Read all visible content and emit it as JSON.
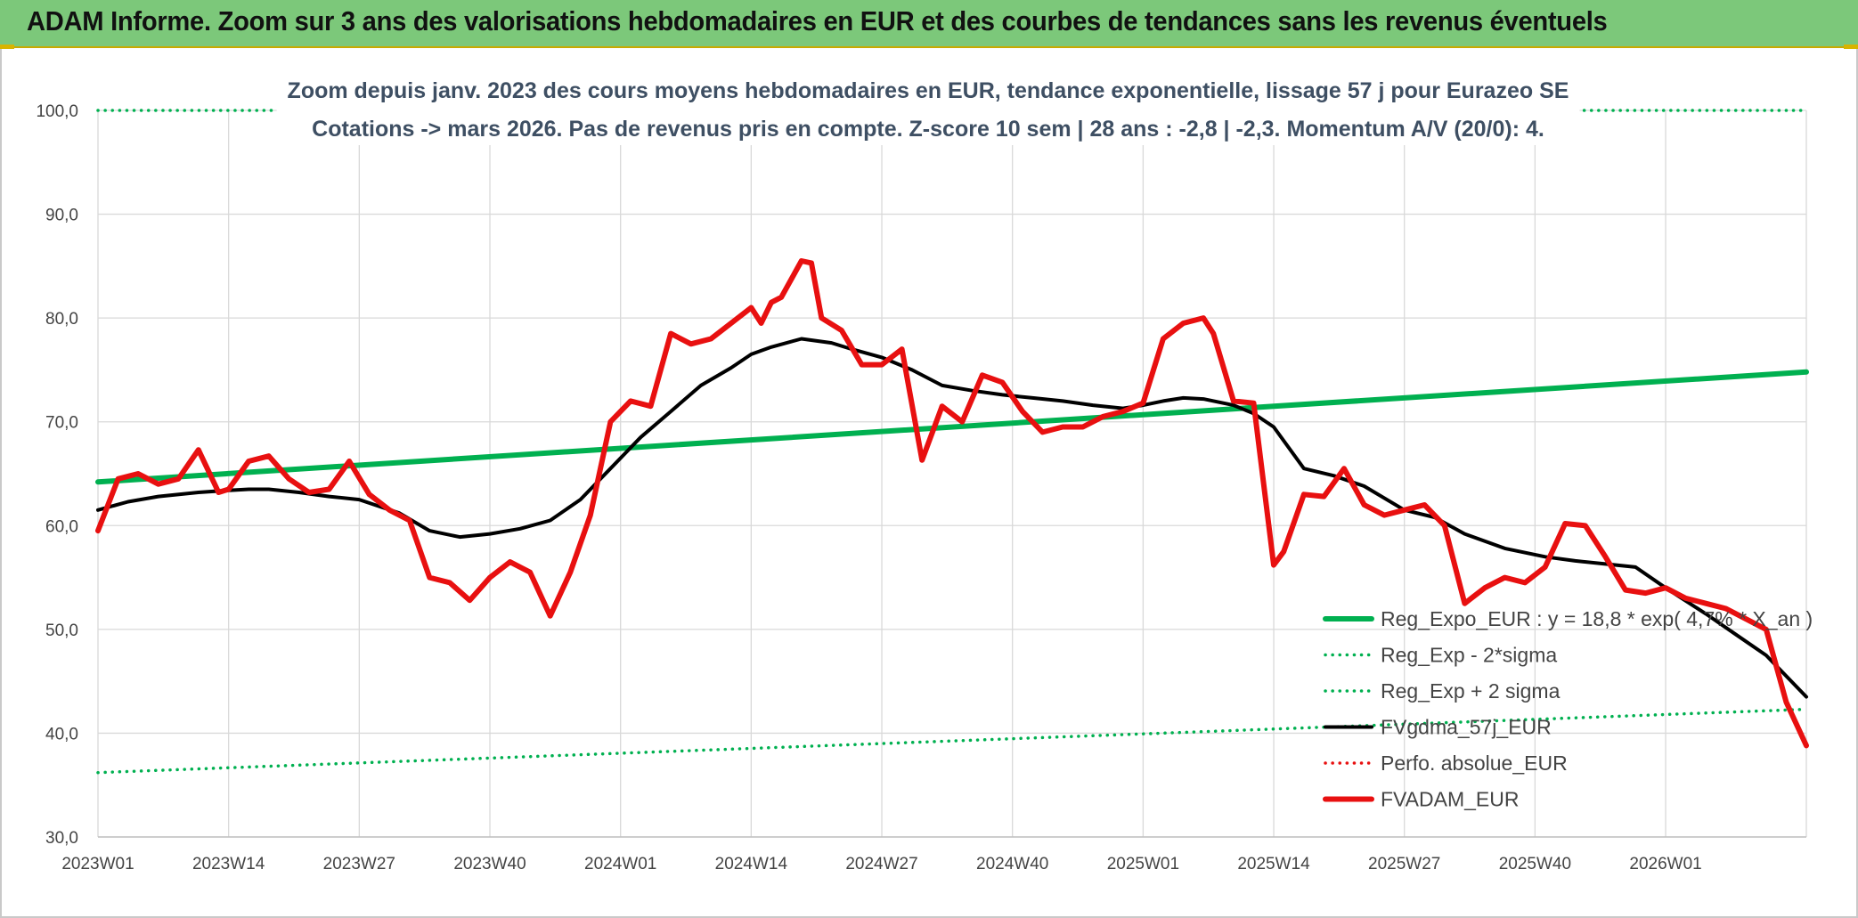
{
  "header": {
    "banner_title": "ADAM Informe. Zoom sur 3 ans des valorisations hebdomadaires en EUR et des courbes de tendances sans les revenus éventuels"
  },
  "colors": {
    "banner_bg": "#7cc87a",
    "reg_expo": "#00b050",
    "fvgdma": "#000000",
    "fvadam": "#e81010",
    "perfo": "#e81010",
    "title_text": "#3e4f63"
  },
  "chart_data": {
    "type": "line",
    "title_lines": [
      "Zoom depuis janv. 2023 des cours moyens hebdomadaires en EUR, tendance exponentielle, lissage 57 j pour Eurazeo SE",
      "Cotations -> mars 2026. Pas de revenus pris en compte. Z-score 10 sem | 28 ans : -2,8 | -2,3. Momentum A/V (20/0): 4."
    ],
    "ylim": [
      30,
      100
    ],
    "y_ticks": [
      "30,0",
      "40,0",
      "50,0",
      "60,0",
      "70,0",
      "80,0",
      "90,0",
      "100,0"
    ],
    "x_tick_labels": [
      "2023W01",
      "2023W14",
      "2023W27",
      "2023W40",
      "2024W01",
      "2024W14",
      "2024W27",
      "2024W40",
      "2025W01",
      "2025W14",
      "2025W27",
      "2025W40",
      "2026W01"
    ],
    "x_tick_index": [
      0,
      13,
      26,
      39,
      52,
      65,
      78,
      91,
      104,
      117,
      130,
      143,
      156
    ],
    "n_points": 171,
    "grid": true,
    "legend_position": "bottom-right",
    "series": [
      {
        "name": "Reg_Expo_EUR : y = 18,8 * exp( 4,7% * X_an )",
        "style": "solid-thick",
        "color": "#00b050",
        "x": [
          0,
          170
        ],
        "values": [
          64.2,
          74.8
        ]
      },
      {
        "name": "Reg_Exp - 2*sigma",
        "style": "dotted",
        "color": "#00b050",
        "x": [
          0,
          170
        ],
        "values": [
          36.2,
          42.3
        ]
      },
      {
        "name": "Reg_Exp + 2 sigma",
        "style": "dotted",
        "color": "#00b050",
        "x": [
          0,
          170
        ],
        "values": [
          100.0,
          100.0
        ]
      },
      {
        "name": "FVgdma_57j_EUR",
        "style": "solid",
        "color": "#000000",
        "x": [
          0,
          3,
          6,
          10,
          13,
          15,
          17,
          20,
          23,
          26,
          30,
          33,
          36,
          39,
          42,
          45,
          48,
          51,
          54,
          57,
          60,
          63,
          65,
          67,
          70,
          73,
          75,
          78,
          81,
          84,
          87,
          90,
          93,
          96,
          99,
          102,
          104,
          106,
          108,
          110,
          113,
          115,
          117,
          120,
          123,
          126,
          130,
          133,
          136,
          140,
          144,
          147,
          150,
          153,
          156,
          160,
          163,
          166,
          170
        ],
        "values": [
          61.5,
          62.3,
          62.8,
          63.2,
          63.4,
          63.5,
          63.5,
          63.2,
          62.8,
          62.5,
          61.2,
          59.5,
          58.9,
          59.2,
          59.7,
          60.5,
          62.5,
          65.5,
          68.5,
          71.0,
          73.5,
          75.2,
          76.5,
          77.2,
          78.0,
          77.6,
          77.0,
          76.2,
          75.0,
          73.5,
          73.0,
          72.6,
          72.3,
          72.0,
          71.6,
          71.3,
          71.6,
          72.0,
          72.3,
          72.2,
          71.6,
          70.8,
          69.5,
          65.5,
          64.8,
          63.8,
          61.5,
          60.8,
          59.2,
          57.8,
          57.0,
          56.6,
          56.3,
          56.0,
          54.0,
          51.5,
          49.5,
          47.5,
          43.5
        ]
      },
      {
        "name": "Perfo. absolue_EUR",
        "style": "dotted",
        "color": "#e81010",
        "x": [],
        "values": []
      },
      {
        "name": "FVADAM_EUR",
        "style": "solid-thick",
        "color": "#e81010",
        "x": [
          0,
          2,
          4,
          6,
          8,
          10,
          12,
          13,
          15,
          17,
          19,
          21,
          23,
          25,
          27,
          29,
          31,
          33,
          35,
          37,
          39,
          41,
          43,
          45,
          47,
          49,
          51,
          53,
          55,
          57,
          59,
          61,
          63,
          65,
          66,
          67,
          68,
          70,
          71,
          72,
          74,
          76,
          78,
          80,
          82,
          84,
          86,
          88,
          90,
          92,
          94,
          96,
          98,
          100,
          102,
          104,
          106,
          108,
          110,
          111,
          113,
          115,
          117,
          118,
          120,
          122,
          124,
          126,
          128,
          130,
          132,
          134,
          136,
          138,
          140,
          142,
          144,
          146,
          148,
          150,
          152,
          154,
          156,
          158,
          160,
          162,
          164,
          166,
          168,
          170
        ],
        "values": [
          59.5,
          64.5,
          65.0,
          64.0,
          64.5,
          67.3,
          63.2,
          63.5,
          66.2,
          66.7,
          64.5,
          63.2,
          63.5,
          66.2,
          63.0,
          61.5,
          60.5,
          55.0,
          54.5,
          52.8,
          55.0,
          56.5,
          55.5,
          51.3,
          55.5,
          61.0,
          70.0,
          72.0,
          71.5,
          78.5,
          77.5,
          78.0,
          79.5,
          81.0,
          79.5,
          81.5,
          82.0,
          85.5,
          85.3,
          80.0,
          78.8,
          75.5,
          75.5,
          77.0,
          66.3,
          71.5,
          70.0,
          74.5,
          73.8,
          71.0,
          69.0,
          69.5,
          69.5,
          70.5,
          71.0,
          71.8,
          78.0,
          79.5,
          80.0,
          78.5,
          72.0,
          71.8,
          56.2,
          57.5,
          63.0,
          62.8,
          65.5,
          62.0,
          61.0,
          61.5,
          62.0,
          60.0,
          52.5,
          54.0,
          55.0,
          54.5,
          56.0,
          60.2,
          60.0,
          57.0,
          53.8,
          53.5,
          54.0,
          53.0,
          52.5,
          52.0,
          51.0,
          50.0,
          43.0,
          38.8
        ]
      }
    ]
  }
}
